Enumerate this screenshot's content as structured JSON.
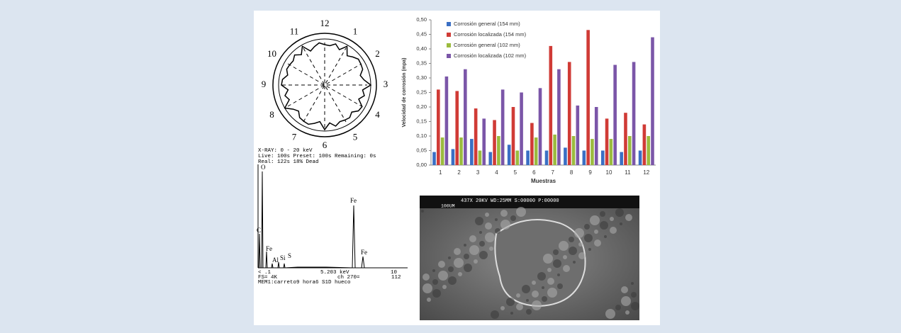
{
  "chart_data": {
    "type": "bar",
    "y_label": "Velocidad de corrosión (mpa)",
    "x_label": "Muestras",
    "categories": [
      "1",
      "2",
      "3",
      "4",
      "5",
      "6",
      "7",
      "8",
      "9",
      "10",
      "11",
      "12"
    ],
    "series": [
      {
        "name": "Corrosión general (154 mm)",
        "color": "#3a6fc4",
        "values": [
          0.045,
          0.055,
          0.09,
          0.045,
          0.07,
          0.05,
          0.05,
          0.06,
          0.05,
          0.05,
          0.045,
          0.05
        ]
      },
      {
        "name": "Corrosión localizada (154 mm)",
        "color": "#d03b36",
        "values": [
          0.26,
          0.255,
          0.195,
          0.155,
          0.2,
          0.145,
          0.41,
          0.355,
          0.465,
          0.16,
          0.18,
          0.14
        ]
      },
      {
        "name": "Corrosión general (102 mm)",
        "color": "#9bbb3e",
        "values": [
          0.095,
          0.095,
          0.05,
          0.1,
          0.05,
          0.095,
          0.105,
          0.1,
          0.09,
          0.09,
          0.1,
          0.1
        ]
      },
      {
        "name": "Corrosión localizada (102 mm)",
        "color": "#7b56a8",
        "values": [
          0.305,
          0.33,
          0.16,
          0.26,
          0.25,
          0.265,
          0.33,
          0.205,
          0.2,
          0.345,
          0.355,
          0.44
        ]
      }
    ],
    "ylim": [
      0,
      0.5
    ],
    "yticks": [
      {
        "value": 0,
        "label": "0,00"
      },
      {
        "value": 0.05,
        "label": "0,05"
      },
      {
        "value": 0.1,
        "label": "0,10"
      },
      {
        "value": 0.15,
        "label": "0,15"
      },
      {
        "value": 0.2,
        "label": "0,20"
      },
      {
        "value": 0.25,
        "label": "0,25"
      },
      {
        "value": 0.3,
        "label": "0,30"
      },
      {
        "value": 0.35,
        "label": "0,35"
      },
      {
        "value": 0.4,
        "label": "0,40"
      },
      {
        "value": 0.45,
        "label": "0,45"
      },
      {
        "value": 0.5,
        "label": "0,50"
      }
    ],
    "legend": "top-left"
  },
  "polar_diagram": {
    "labels": [
      "1",
      "2",
      "3",
      "4",
      "5",
      "6",
      "7",
      "8",
      "9",
      "10",
      "11",
      "12"
    ]
  },
  "eds_spectrum": {
    "header": [
      "X-RAY:  0 - 20 keV",
      "Live:  100s Preset:  100s Remaining: 0s",
      "Real:  122s   18% Dead"
    ],
    "peaks": [
      "O",
      "C",
      "Fe",
      "Al",
      "Si",
      "S",
      "Fe",
      "Fe"
    ],
    "footer": [
      "< .1",
      "5.203  keV",
      "10",
      "FS= 4K",
      "ch 270=",
      "112",
      "MEM1:carreto9 hora6 S1D hueco"
    ]
  },
  "sem_image": {
    "header": "437X   20KV WD:25MM   S:00000 P:00000",
    "scale": "100UM"
  }
}
